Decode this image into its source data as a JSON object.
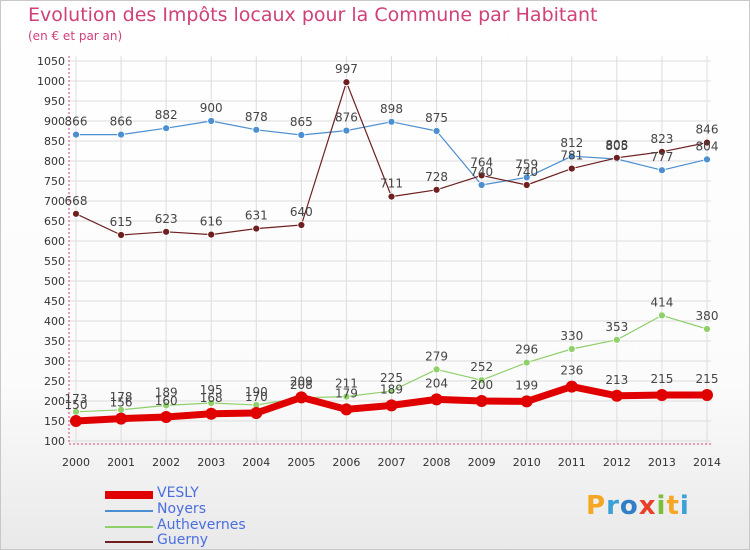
{
  "header": {
    "title": "Evolution des Impôts locaux pour la Commune par Habitant",
    "subtitle": "(en € et par an)"
  },
  "logo": {
    "text": "Proxiti",
    "letters": [
      "P",
      "r",
      "o",
      "x",
      "i",
      "t",
      "i"
    ],
    "colors": [
      "#f5a623",
      "#3aa0d8",
      "#2f7ec7",
      "#e8402a",
      "#7cbf3a",
      "#f5a623",
      "#3aa0d8"
    ]
  },
  "colors": {
    "title": "#d0407a",
    "axis": "#d0407a",
    "grid": "#dddddd",
    "legend_text": "#4a6ee0"
  },
  "chart_data": {
    "type": "line",
    "title": "Evolution des Impôts locaux pour la Commune par Habitant",
    "subtitle": "(en € et par an)",
    "x": [
      "2000",
      "2001",
      "2002",
      "2003",
      "2004",
      "2005",
      "2006",
      "2007",
      "2008",
      "2009",
      "2010",
      "2011",
      "2012",
      "2013",
      "2014"
    ],
    "ylim": [
      100,
      1050
    ],
    "yticks": [
      100,
      150,
      200,
      250,
      300,
      350,
      400,
      450,
      500,
      550,
      600,
      650,
      700,
      750,
      800,
      850,
      900,
      950,
      1000,
      1050
    ],
    "grid": true,
    "legend_position": "bottom-left",
    "series": [
      {
        "name": "VESLY",
        "color": "#e00000",
        "width": 7,
        "values": [
          150,
          156,
          160,
          168,
          170,
          209,
          179,
          189,
          204,
          200,
          199,
          236,
          213,
          215,
          215
        ],
        "labels": [
          "150",
          "156",
          "160",
          "168",
          "170",
          "209",
          "179",
          "189",
          "204",
          "200",
          "199",
          "236",
          "213",
          "215",
          "215"
        ]
      },
      {
        "name": "Noyers",
        "color": "#4b8fd0",
        "width": 1.2,
        "values": [
          866,
          866,
          882,
          900,
          878,
          865,
          876,
          898,
          875,
          740,
          759,
          812,
          805,
          777,
          804
        ],
        "labels": [
          "866",
          "866",
          "882",
          "900",
          "878",
          "865",
          "876",
          "898",
          "875",
          "740",
          "759",
          "812",
          "805",
          "777",
          "804"
        ]
      },
      {
        "name": "Authevernes",
        "color": "#8fd06a",
        "width": 1.2,
        "values": [
          173,
          178,
          189,
          195,
          190,
          208,
          211,
          225,
          279,
          252,
          296,
          330,
          353,
          414,
          380
        ],
        "labels": [
          "173",
          "178",
          "189",
          "195",
          "190",
          "208",
          "211",
          "225",
          "279",
          "252",
          "296",
          "330",
          "353",
          "414",
          "380"
        ]
      },
      {
        "name": "Guerny",
        "color": "#6e1f1f",
        "width": 1.2,
        "values": [
          668,
          615,
          623,
          616,
          631,
          640,
          997,
          711,
          728,
          764,
          740,
          781,
          808,
          823,
          846
        ],
        "labels": [
          "668",
          "615",
          "623",
          "616",
          "631",
          "640",
          "997",
          "711",
          "728",
          "764",
          "740",
          "781",
          "808",
          "823",
          "846"
        ]
      }
    ]
  }
}
